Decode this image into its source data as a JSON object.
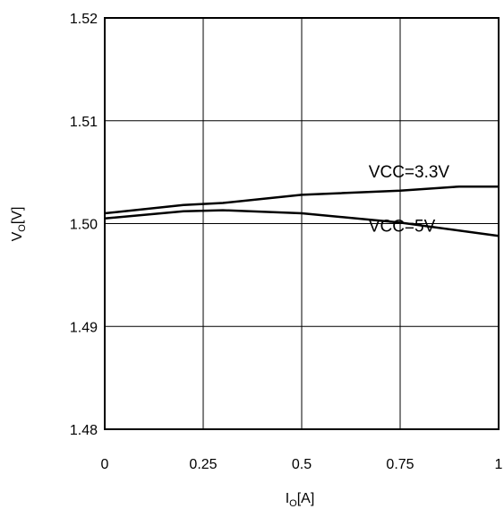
{
  "chart_data": {
    "type": "line",
    "title": "",
    "xlabel": {
      "main": "I",
      "sub": "O",
      "unit": "[A]"
    },
    "ylabel": {
      "main": "V",
      "sub": "O",
      "unit": "[V]"
    },
    "xlim": [
      0,
      1
    ],
    "ylim": [
      1.48,
      1.52
    ],
    "x_ticks": [
      0,
      0.25,
      0.5,
      0.75,
      1
    ],
    "x_tick_labels": [
      "0",
      "0.25",
      "0.5",
      "0.75",
      "1"
    ],
    "y_ticks": [
      1.48,
      1.49,
      1.5,
      1.51,
      1.52
    ],
    "y_tick_labels": [
      "1.48",
      "1.49",
      "1.50",
      "1.51",
      "1.52"
    ],
    "grid": true,
    "legend": "none",
    "annotations": [
      {
        "text": "VCC=3.3V",
        "x": 0.67,
        "y": 1.5045
      },
      {
        "text": "VCC=5V",
        "x": 0.67,
        "y": 1.4992
      }
    ],
    "series": [
      {
        "name": "VCC=3.3V",
        "color": "#000000",
        "x": [
          0,
          0.2,
          0.3,
          0.5,
          0.75,
          0.9,
          1
        ],
        "y": [
          1.501,
          1.5018,
          1.502,
          1.5028,
          1.5032,
          1.5036,
          1.5036
        ]
      },
      {
        "name": "VCC=5V",
        "color": "#000000",
        "x": [
          0,
          0.2,
          0.3,
          0.5,
          0.75,
          1
        ],
        "y": [
          1.5005,
          1.5012,
          1.5013,
          1.501,
          1.5001,
          1.4988
        ]
      }
    ]
  }
}
